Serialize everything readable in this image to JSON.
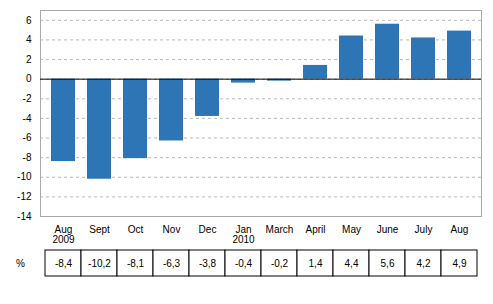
{
  "chart_data": {
    "type": "bar",
    "categories": [
      "Aug\n2009",
      "Sept",
      "Oct",
      "Nov",
      "Dec",
      "Jan\n2010",
      "March",
      "April",
      "May",
      "June",
      "July",
      "Aug"
    ],
    "values": [
      -8.4,
      -10.2,
      -8.1,
      -6.3,
      -3.8,
      -0.4,
      -0.2,
      1.4,
      4.4,
      5.6,
      4.2,
      4.9
    ],
    "value_labels": [
      "-8,4",
      "-10,2",
      "-8,1",
      "-6,3",
      "-3,8",
      "-0,4",
      "-0,2",
      "1,4",
      "4,4",
      "5,6",
      "4,2",
      "4,9"
    ],
    "data_labels": true,
    "ylabel": "%",
    "color": "#2e75b6",
    "ylim": [
      -14,
      7
    ],
    "yticks": [
      -14,
      -12,
      -10,
      -8,
      -6,
      -4,
      -2,
      0,
      2,
      4,
      6
    ],
    "grid": true
  }
}
